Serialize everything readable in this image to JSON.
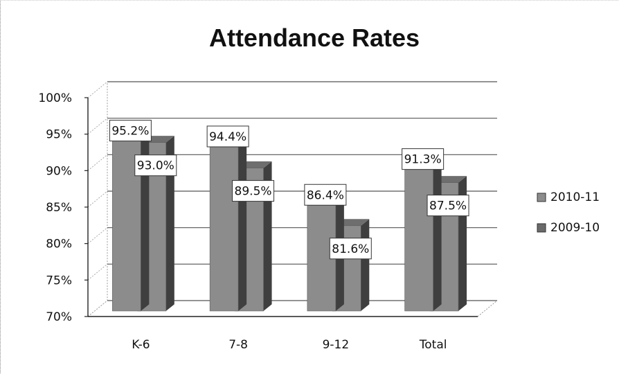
{
  "chart_data": {
    "type": "bar",
    "title": "Attendance Rates",
    "categories": [
      "K-6",
      "7-8",
      "9-12",
      "Total"
    ],
    "series": [
      {
        "name": "2010-11",
        "values": [
          95.2,
          94.4,
          86.4,
          91.3
        ],
        "labels": [
          "95.2%",
          "94.4%",
          "86.4%",
          "91.3%"
        ]
      },
      {
        "name": "2009-10",
        "values": [
          93.0,
          89.5,
          81.6,
          87.5
        ],
        "labels": [
          "93.0%",
          "89.5%",
          "81.6%",
          "87.5%"
        ]
      }
    ],
    "ylim": [
      70,
      100
    ],
    "yticks": [
      70,
      75,
      80,
      85,
      90,
      95,
      100
    ],
    "ytick_labels": [
      "70%",
      "75%",
      "80%",
      "85%",
      "90%",
      "95%",
      "100%"
    ],
    "grid": true,
    "legend_position": "right",
    "colors": {
      "bar_front": "#8c8c8c",
      "bar_side": "#3f3f3f",
      "bar_top": "#6e6e6e",
      "grid": "#555555"
    }
  }
}
